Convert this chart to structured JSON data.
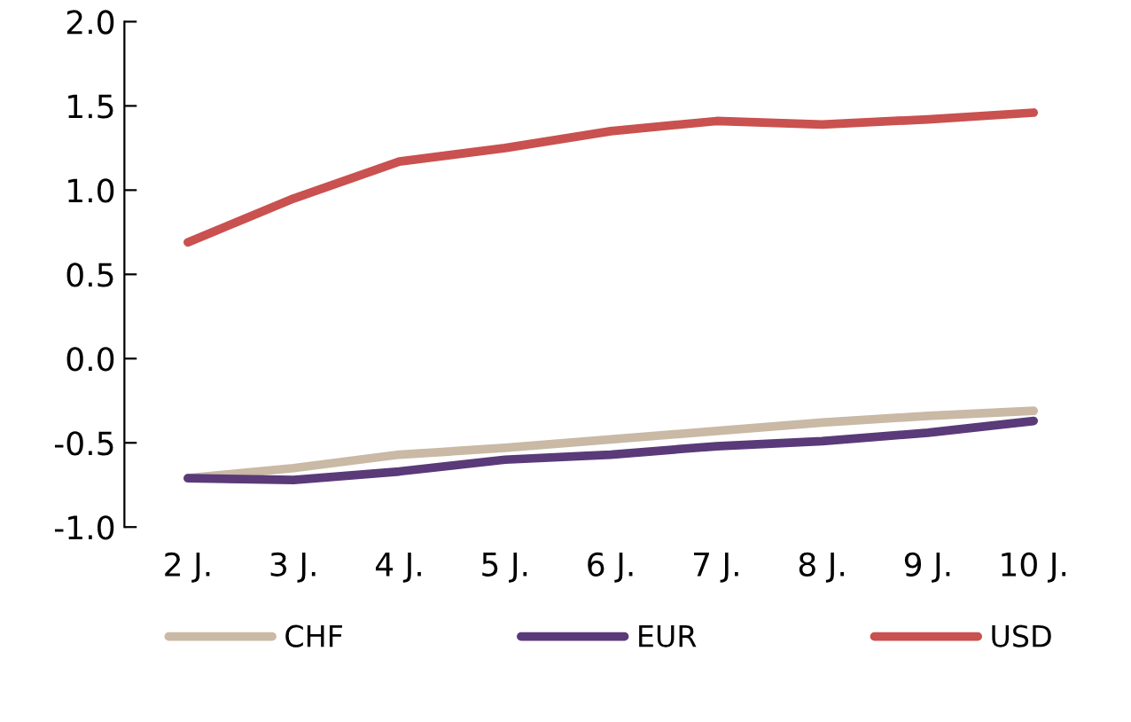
{
  "chart_data": {
    "type": "line",
    "categories": [
      "2 J.",
      "3 J.",
      "4 J.",
      "5 J.",
      "6 J.",
      "7 J.",
      "8 J.",
      "9 J.",
      "10 J."
    ],
    "series": [
      {
        "name": "CHF",
        "color": "#c9b9a5",
        "values": [
          -0.71,
          -0.65,
          -0.57,
          -0.53,
          -0.48,
          -0.43,
          -0.38,
          -0.34,
          -0.31
        ]
      },
      {
        "name": "EUR",
        "color": "#5a3a78",
        "values": [
          -0.71,
          -0.72,
          -0.67,
          -0.6,
          -0.57,
          -0.52,
          -0.49,
          -0.44,
          -0.37
        ]
      },
      {
        "name": "USD",
        "color": "#c9514f",
        "values": [
          0.69,
          0.95,
          1.17,
          1.25,
          1.35,
          1.41,
          1.39,
          1.42,
          1.46
        ]
      }
    ],
    "ylim": [
      -1.0,
      2.0
    ],
    "yticks": [
      {
        "value": -1.0,
        "label": "-1.0"
      },
      {
        "value": -0.5,
        "label": "-0.5"
      },
      {
        "value": 0.0,
        "label": "0.0"
      },
      {
        "value": 0.5,
        "label": "0.5"
      },
      {
        "value": 1.0,
        "label": "1.0"
      },
      {
        "value": 1.5,
        "label": "1.5"
      },
      {
        "value": 2.0,
        "label": "2.0"
      }
    ],
    "grid": false,
    "legend": "bottom",
    "marker": "none",
    "line_style": "solid"
  }
}
